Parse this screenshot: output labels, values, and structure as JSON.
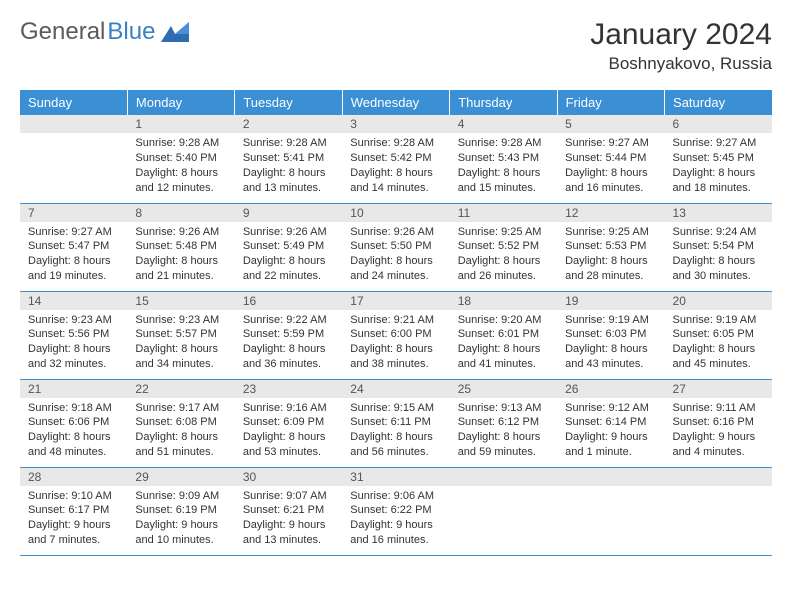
{
  "logo": {
    "text1": "General",
    "text2": "Blue"
  },
  "header": {
    "title": "January 2024",
    "location": "Boshnyakovo, Russia"
  },
  "colors": {
    "header_bg": "#3b8fd4",
    "header_text": "#ffffff",
    "daynum_bg": "#e8e8e8",
    "border": "#3b8fd4",
    "logo_gray": "#5a5a5a",
    "logo_blue": "#3b7fc4"
  },
  "weekdays": [
    "Sunday",
    "Monday",
    "Tuesday",
    "Wednesday",
    "Thursday",
    "Friday",
    "Saturday"
  ],
  "weeks": [
    [
      {
        "day": "",
        "sunrise": "",
        "sunset": "",
        "daylight": ""
      },
      {
        "day": "1",
        "sunrise": "Sunrise: 9:28 AM",
        "sunset": "Sunset: 5:40 PM",
        "daylight": "Daylight: 8 hours and 12 minutes."
      },
      {
        "day": "2",
        "sunrise": "Sunrise: 9:28 AM",
        "sunset": "Sunset: 5:41 PM",
        "daylight": "Daylight: 8 hours and 13 minutes."
      },
      {
        "day": "3",
        "sunrise": "Sunrise: 9:28 AM",
        "sunset": "Sunset: 5:42 PM",
        "daylight": "Daylight: 8 hours and 14 minutes."
      },
      {
        "day": "4",
        "sunrise": "Sunrise: 9:28 AM",
        "sunset": "Sunset: 5:43 PM",
        "daylight": "Daylight: 8 hours and 15 minutes."
      },
      {
        "day": "5",
        "sunrise": "Sunrise: 9:27 AM",
        "sunset": "Sunset: 5:44 PM",
        "daylight": "Daylight: 8 hours and 16 minutes."
      },
      {
        "day": "6",
        "sunrise": "Sunrise: 9:27 AM",
        "sunset": "Sunset: 5:45 PM",
        "daylight": "Daylight: 8 hours and 18 minutes."
      }
    ],
    [
      {
        "day": "7",
        "sunrise": "Sunrise: 9:27 AM",
        "sunset": "Sunset: 5:47 PM",
        "daylight": "Daylight: 8 hours and 19 minutes."
      },
      {
        "day": "8",
        "sunrise": "Sunrise: 9:26 AM",
        "sunset": "Sunset: 5:48 PM",
        "daylight": "Daylight: 8 hours and 21 minutes."
      },
      {
        "day": "9",
        "sunrise": "Sunrise: 9:26 AM",
        "sunset": "Sunset: 5:49 PM",
        "daylight": "Daylight: 8 hours and 22 minutes."
      },
      {
        "day": "10",
        "sunrise": "Sunrise: 9:26 AM",
        "sunset": "Sunset: 5:50 PM",
        "daylight": "Daylight: 8 hours and 24 minutes."
      },
      {
        "day": "11",
        "sunrise": "Sunrise: 9:25 AM",
        "sunset": "Sunset: 5:52 PM",
        "daylight": "Daylight: 8 hours and 26 minutes."
      },
      {
        "day": "12",
        "sunrise": "Sunrise: 9:25 AM",
        "sunset": "Sunset: 5:53 PM",
        "daylight": "Daylight: 8 hours and 28 minutes."
      },
      {
        "day": "13",
        "sunrise": "Sunrise: 9:24 AM",
        "sunset": "Sunset: 5:54 PM",
        "daylight": "Daylight: 8 hours and 30 minutes."
      }
    ],
    [
      {
        "day": "14",
        "sunrise": "Sunrise: 9:23 AM",
        "sunset": "Sunset: 5:56 PM",
        "daylight": "Daylight: 8 hours and 32 minutes."
      },
      {
        "day": "15",
        "sunrise": "Sunrise: 9:23 AM",
        "sunset": "Sunset: 5:57 PM",
        "daylight": "Daylight: 8 hours and 34 minutes."
      },
      {
        "day": "16",
        "sunrise": "Sunrise: 9:22 AM",
        "sunset": "Sunset: 5:59 PM",
        "daylight": "Daylight: 8 hours and 36 minutes."
      },
      {
        "day": "17",
        "sunrise": "Sunrise: 9:21 AM",
        "sunset": "Sunset: 6:00 PM",
        "daylight": "Daylight: 8 hours and 38 minutes."
      },
      {
        "day": "18",
        "sunrise": "Sunrise: 9:20 AM",
        "sunset": "Sunset: 6:01 PM",
        "daylight": "Daylight: 8 hours and 41 minutes."
      },
      {
        "day": "19",
        "sunrise": "Sunrise: 9:19 AM",
        "sunset": "Sunset: 6:03 PM",
        "daylight": "Daylight: 8 hours and 43 minutes."
      },
      {
        "day": "20",
        "sunrise": "Sunrise: 9:19 AM",
        "sunset": "Sunset: 6:05 PM",
        "daylight": "Daylight: 8 hours and 45 minutes."
      }
    ],
    [
      {
        "day": "21",
        "sunrise": "Sunrise: 9:18 AM",
        "sunset": "Sunset: 6:06 PM",
        "daylight": "Daylight: 8 hours and 48 minutes."
      },
      {
        "day": "22",
        "sunrise": "Sunrise: 9:17 AM",
        "sunset": "Sunset: 6:08 PM",
        "daylight": "Daylight: 8 hours and 51 minutes."
      },
      {
        "day": "23",
        "sunrise": "Sunrise: 9:16 AM",
        "sunset": "Sunset: 6:09 PM",
        "daylight": "Daylight: 8 hours and 53 minutes."
      },
      {
        "day": "24",
        "sunrise": "Sunrise: 9:15 AM",
        "sunset": "Sunset: 6:11 PM",
        "daylight": "Daylight: 8 hours and 56 minutes."
      },
      {
        "day": "25",
        "sunrise": "Sunrise: 9:13 AM",
        "sunset": "Sunset: 6:12 PM",
        "daylight": "Daylight: 8 hours and 59 minutes."
      },
      {
        "day": "26",
        "sunrise": "Sunrise: 9:12 AM",
        "sunset": "Sunset: 6:14 PM",
        "daylight": "Daylight: 9 hours and 1 minute."
      },
      {
        "day": "27",
        "sunrise": "Sunrise: 9:11 AM",
        "sunset": "Sunset: 6:16 PM",
        "daylight": "Daylight: 9 hours and 4 minutes."
      }
    ],
    [
      {
        "day": "28",
        "sunrise": "Sunrise: 9:10 AM",
        "sunset": "Sunset: 6:17 PM",
        "daylight": "Daylight: 9 hours and 7 minutes."
      },
      {
        "day": "29",
        "sunrise": "Sunrise: 9:09 AM",
        "sunset": "Sunset: 6:19 PM",
        "daylight": "Daylight: 9 hours and 10 minutes."
      },
      {
        "day": "30",
        "sunrise": "Sunrise: 9:07 AM",
        "sunset": "Sunset: 6:21 PM",
        "daylight": "Daylight: 9 hours and 13 minutes."
      },
      {
        "day": "31",
        "sunrise": "Sunrise: 9:06 AM",
        "sunset": "Sunset: 6:22 PM",
        "daylight": "Daylight: 9 hours and 16 minutes."
      },
      {
        "day": "",
        "sunrise": "",
        "sunset": "",
        "daylight": ""
      },
      {
        "day": "",
        "sunrise": "",
        "sunset": "",
        "daylight": ""
      },
      {
        "day": "",
        "sunrise": "",
        "sunset": "",
        "daylight": ""
      }
    ]
  ]
}
